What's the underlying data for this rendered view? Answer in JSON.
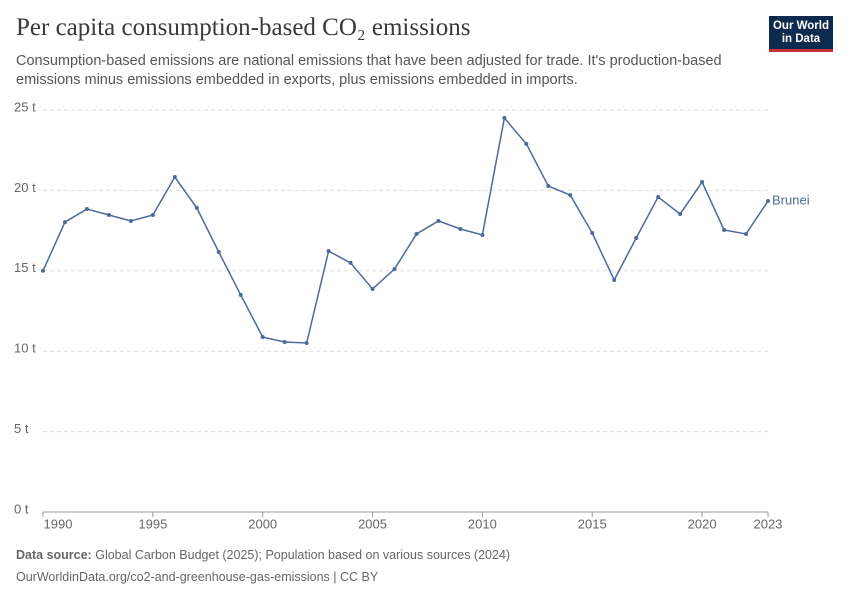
{
  "chart_data": {
    "type": "line",
    "title": "Per capita consumption-based CO₂ emissions",
    "subtitle": "Consumption-based emissions are national emissions that have been adjusted for trade. It's production-based emissions minus emissions embedded in exports, plus emissions embedded in imports.",
    "logo": [
      "Our World",
      "in Data"
    ],
    "source_label": "Data source:",
    "source": "Global Carbon Budget (2025); Population based on various sources (2024)",
    "url_line": "OurWorldinData.org/co2-and-greenhouse-gas-emissions | CC BY",
    "x": [
      1990,
      1991,
      1992,
      1993,
      1994,
      1995,
      1996,
      1997,
      1998,
      1999,
      2000,
      2001,
      2002,
      2003,
      2004,
      2005,
      2006,
      2007,
      2008,
      2009,
      2010,
      2011,
      2012,
      2013,
      2014,
      2015,
      2016,
      2017,
      2018,
      2019,
      2020,
      2021,
      2022,
      2023
    ],
    "series": [
      {
        "name": "Brunei",
        "color": "#4c6a9c",
        "values": [
          15.0,
          18.03,
          18.84,
          18.47,
          18.1,
          18.47,
          20.83,
          18.91,
          16.17,
          13.5,
          10.88,
          10.57,
          10.51,
          16.23,
          15.49,
          13.87,
          15.11,
          17.29,
          18.1,
          17.6,
          17.23,
          24.5,
          22.89,
          20.27,
          19.71,
          17.35,
          14.43,
          17.04,
          19.59,
          18.53,
          20.52,
          17.54,
          17.29,
          19.34
        ]
      }
    ],
    "xlim": [
      1990,
      2023
    ],
    "xticks": [
      1990,
      1995,
      2000,
      2005,
      2010,
      2015,
      2020,
      2023
    ],
    "ylim": [
      0,
      25
    ],
    "yticks": [
      {
        "value": 0,
        "label": "0 t"
      },
      {
        "value": 5,
        "label": "5 t"
      },
      {
        "value": 10,
        "label": "10 t"
      },
      {
        "value": 15,
        "label": "15 t"
      },
      {
        "value": 20,
        "label": "20 t"
      },
      {
        "value": 25,
        "label": "25 t"
      }
    ],
    "grid": true
  }
}
